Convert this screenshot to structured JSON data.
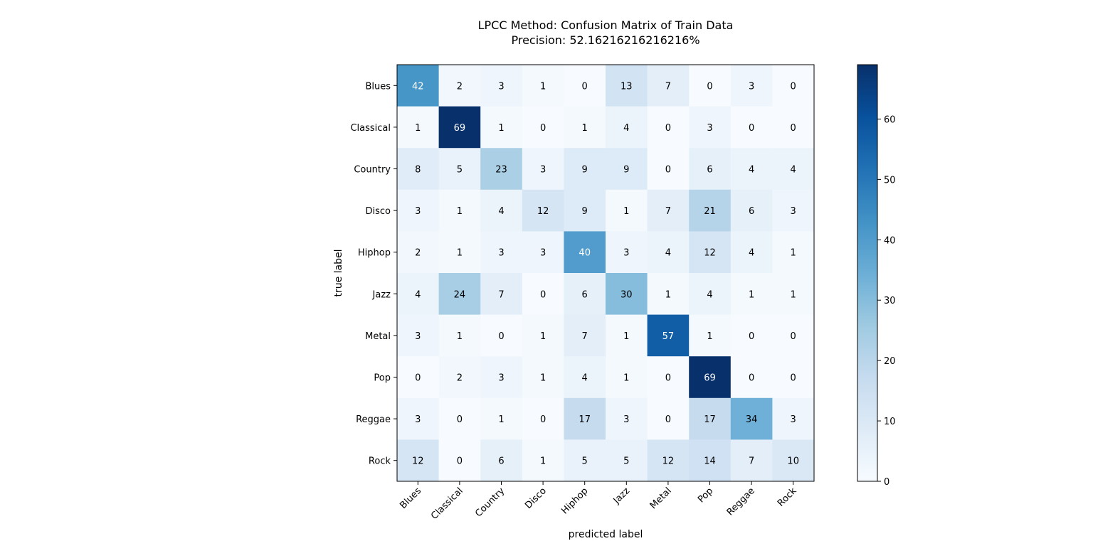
{
  "chart_data": {
    "type": "heatmap",
    "title": "LPCC Method: Confusion Matrix of Train Data",
    "subtitle": "Precision: 52.16216216216216%",
    "xlabel": "predicted label",
    "ylabel": "true label",
    "x_categories": [
      "Blues",
      "Classical",
      "Country",
      "Disco",
      "Hiphop",
      "Jazz",
      "Metal",
      "Pop",
      "Reggae",
      "Rock"
    ],
    "y_categories": [
      "Blues",
      "Classical",
      "Country",
      "Disco",
      "Hiphop",
      "Jazz",
      "Metal",
      "Pop",
      "Reggae",
      "Rock"
    ],
    "values": [
      [
        42,
        2,
        3,
        1,
        0,
        13,
        7,
        0,
        3,
        0
      ],
      [
        1,
        69,
        1,
        0,
        1,
        4,
        0,
        3,
        0,
        0
      ],
      [
        8,
        5,
        23,
        3,
        9,
        9,
        0,
        6,
        4,
        4
      ],
      [
        3,
        1,
        4,
        12,
        9,
        1,
        7,
        21,
        6,
        3
      ],
      [
        2,
        1,
        3,
        3,
        40,
        3,
        4,
        12,
        4,
        1
      ],
      [
        4,
        24,
        7,
        0,
        6,
        30,
        1,
        4,
        1,
        1
      ],
      [
        3,
        1,
        0,
        1,
        7,
        1,
        57,
        1,
        0,
        0
      ],
      [
        0,
        2,
        3,
        1,
        4,
        1,
        0,
        69,
        0,
        0
      ],
      [
        3,
        0,
        1,
        0,
        17,
        3,
        0,
        17,
        34,
        3
      ],
      [
        12,
        0,
        6,
        1,
        5,
        5,
        12,
        14,
        7,
        10
      ]
    ],
    "colorscale": "Blues",
    "colorbar": {
      "range": [
        0,
        69
      ],
      "ticks": [
        0,
        10,
        20,
        30,
        40,
        50,
        60
      ]
    },
    "grid": false
  }
}
